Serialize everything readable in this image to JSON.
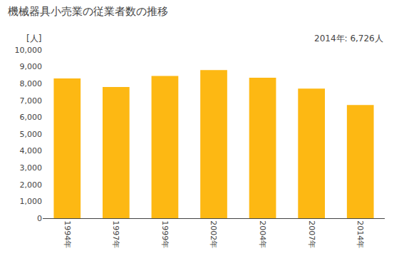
{
  "chart_data": {
    "type": "bar",
    "title": "機械器具小売業の従業者数の推移",
    "ylabel": "[人]",
    "annotation": "2014年: 6,726人",
    "categories": [
      "1994年",
      "1997年",
      "1999年",
      "2002年",
      "2004年",
      "2007年",
      "2014年"
    ],
    "values": [
      8300,
      7800,
      8450,
      8800,
      8350,
      7700,
      6726
    ],
    "color": "#FDB813",
    "ylim": [
      0,
      10000
    ],
    "yticks": [
      0,
      {
        "value": 1000,
        "label": "1,000"
      },
      {
        "value": 2000,
        "label": "2,000"
      },
      {
        "value": 3000,
        "label": "3,000"
      },
      {
        "value": 4000,
        "label": "4,000"
      },
      {
        "value": 5000,
        "label": "5,000"
      },
      {
        "value": 6000,
        "label": "6,000"
      },
      {
        "value": 7000,
        "label": "7,000"
      },
      {
        "value": 8000,
        "label": "8,000"
      },
      {
        "value": 9000,
        "label": "9,000"
      },
      {
        "value": 10000,
        "label": "10,000"
      }
    ],
    "grid": false
  }
}
